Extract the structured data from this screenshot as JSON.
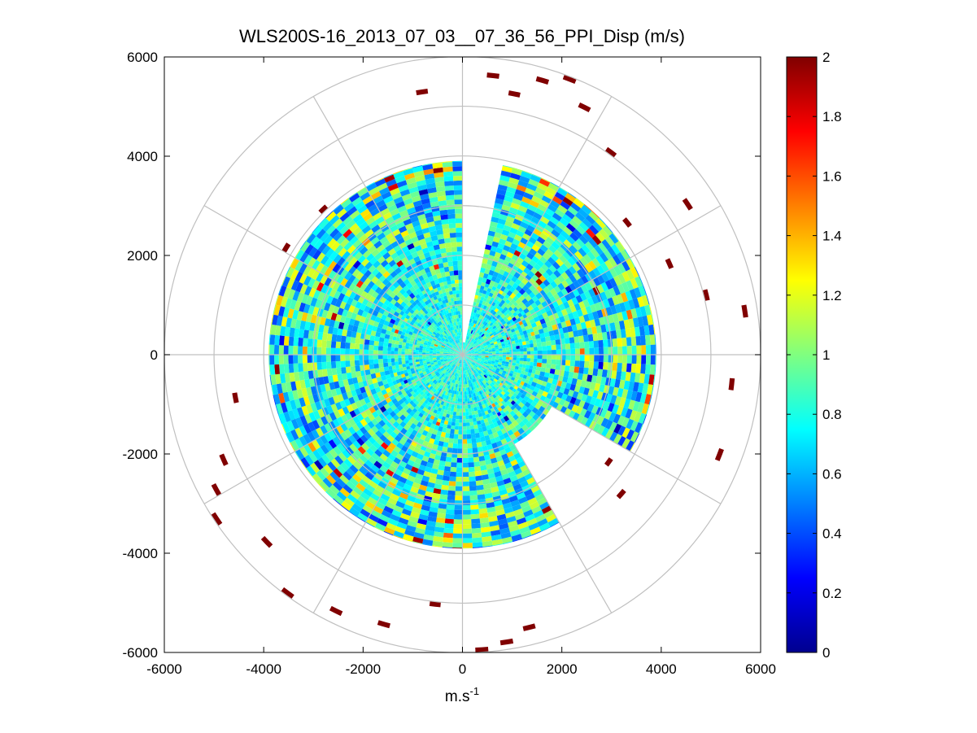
{
  "chart_data": {
    "type": "heatmap",
    "subtype": "polar-ppi",
    "title": "WLS200S-16_2013_07_03__07_36_56_PPI_Disp (m/s)",
    "xlabel": "m.s",
    "xlabel_sup": "-1",
    "ylabel": "",
    "xlim": [
      -6000,
      6000
    ],
    "ylim": [
      -6000,
      6000
    ],
    "xticks": [
      -6000,
      -4000,
      -2000,
      0,
      2000,
      4000,
      6000
    ],
    "yticks": [
      6000,
      4000,
      2000,
      0,
      -2000,
      -4000,
      -6000
    ],
    "xtick_labels": [
      "-6000",
      "-4000",
      "-2000",
      "0",
      "2000",
      "4000",
      "6000"
    ],
    "ytick_labels": [
      "6000",
      "4000",
      "2000",
      "0",
      "-2000",
      "-4000",
      "-6000"
    ],
    "polar_grid": {
      "ring_radii": [
        1000,
        2000,
        3000,
        4000,
        5000,
        6000
      ],
      "spoke_angles_deg": [
        0,
        30,
        60,
        90,
        120,
        150,
        180,
        210,
        240,
        270,
        300,
        330
      ]
    },
    "colorbar": {
      "range": [
        0,
        2
      ],
      "ticks": [
        0,
        0.2,
        0.4,
        0.6,
        0.8,
        1,
        1.2,
        1.4,
        1.6,
        1.8,
        2
      ],
      "tick_labels": [
        "0",
        "0.2",
        "0.4",
        "0.6",
        "0.8",
        "1",
        "1.2",
        "1.4",
        "1.6",
        "1.8",
        "2"
      ],
      "colormap": "jet"
    },
    "dense_scan": {
      "max_range": 3900,
      "gap_azimuth_deg": [
        0,
        10
      ],
      "gap_start_range": 200,
      "missing_sector_deg": [
        118,
        150
      ],
      "missing_sector_start_range": 2000,
      "typical_value": 0.8
    },
    "sparse_returns": [
      {
        "az": 5,
        "r": 5600,
        "v": 2.0
      },
      {
        "az": 10,
        "r": 5300,
        "v": 2.0
      },
      {
        "az": 15,
        "r": 5700,
        "v": 2.0
      },
      {
        "az": 20,
        "r": 5900,
        "v": 2.0
      },
      {
        "az": 25,
        "r": 5500,
        "v": 2.0
      },
      {
        "az": 35,
        "r": 5000,
        "v": 2.0
      },
      {
        "az": 50,
        "r": 4200,
        "v": 2.0
      },
      {
        "az": 55,
        "r": 5400,
        "v": 2.0
      },
      {
        "az": 65,
        "r": 4500,
        "v": 2.0
      },
      {
        "az": 75,
        "r": 5000,
        "v": 2.0
      },
      {
        "az": 80,
        "r": 5700,
        "v": 2.0
      },
      {
        "az": 95,
        "r": 5400,
        "v": 2.0
      },
      {
        "az": 110,
        "r": 5500,
        "v": 2.0
      },
      {
        "az": 125,
        "r": 3600,
        "v": 2.0
      },
      {
        "az": 130,
        "r": 4200,
        "v": 2.0
      },
      {
        "az": 165,
        "r": 5600,
        "v": 2.0
      },
      {
        "az": 170,
        "r": 5800,
        "v": 2.0
      },
      {
        "az": 175,
        "r": 5900,
        "v": 2.0
      },
      {
        "az": 185,
        "r": 5000,
        "v": 2.0
      },
      {
        "az": 195,
        "r": 5600,
        "v": 2.0
      },
      {
        "az": 205,
        "r": 5700,
        "v": 2.0
      },
      {
        "az": 215,
        "r": 5900,
        "v": 2.0
      },
      {
        "az": 225,
        "r": 5400,
        "v": 2.0
      },
      {
        "az": 235,
        "r": 5900,
        "v": 2.0
      },
      {
        "az": 240,
        "r": 5600,
        "v": 2.0
      },
      {
        "az": 245,
        "r": 5200,
        "v": 2.0
      },
      {
        "az": 258,
        "r": 4600,
        "v": 2.0
      },
      {
        "az": 300,
        "r": 4100,
        "v": 2.0
      },
      {
        "az": 315,
        "r": 4000,
        "v": 2.0
      },
      {
        "az": 350,
        "r": 5300,
        "v": 2.0
      }
    ]
  }
}
